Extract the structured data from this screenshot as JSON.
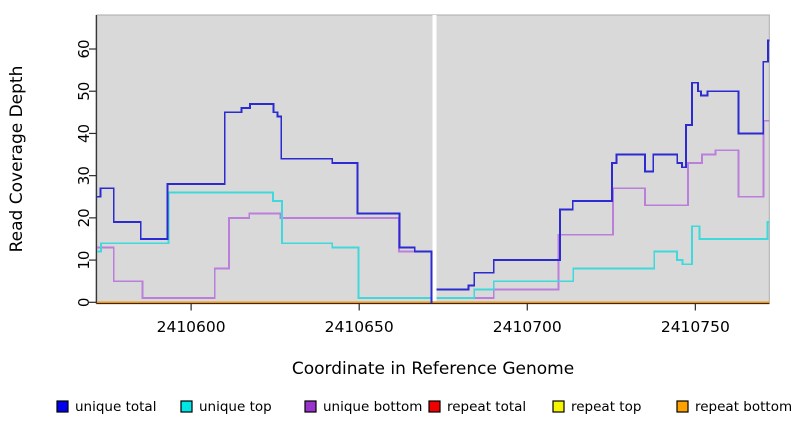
{
  "chart_data": {
    "type": "line",
    "subtype": "step",
    "title": "",
    "xlabel": "Coordinate in Reference Genome",
    "ylabel": "Read Coverage Depth",
    "xlim": [
      2410572,
      2410772
    ],
    "ylim": [
      0,
      68
    ],
    "x_ticks": [
      2410600,
      2410650,
      2410700,
      2410750
    ],
    "y_ticks": [
      0,
      10,
      20,
      30,
      40,
      50,
      60
    ],
    "grid": false,
    "legend_position": "bottom",
    "panel_bg": "#d9d9d9",
    "gap_x": [
      2410671.8,
      2410673.0
    ],
    "series": [
      {
        "name": "unique total",
        "color": "#0000EB",
        "line_color": "#2B2BD1",
        "segments": [
          {
            "points": [
              [
                2410572,
                25
              ],
              [
                2410573,
                27
              ],
              [
                2410577,
                19
              ],
              [
                2410585,
                15
              ],
              [
                2410593,
                28
              ],
              [
                2410610,
                45
              ],
              [
                2410615,
                46
              ],
              [
                2410617.5,
                47
              ],
              [
                2410624.5,
                45
              ],
              [
                2410625.7,
                44
              ],
              [
                2410626.8,
                34
              ],
              [
                2410642,
                33
              ],
              [
                2410649.5,
                21
              ],
              [
                2410662,
                13
              ],
              [
                2410666.5,
                12
              ],
              [
                2410671.5,
                0
              ]
            ],
            "end": 2410671.8
          },
          {
            "points": [
              [
                2410673,
                3
              ],
              [
                2410682.5,
                4
              ],
              [
                2410684.2,
                7
              ],
              [
                2410690,
                10
              ],
              [
                2410709.7,
                22
              ],
              [
                2410713.5,
                24
              ],
              [
                2410725.2,
                33
              ],
              [
                2410726.5,
                35
              ],
              [
                2410735,
                31
              ],
              [
                2410737.5,
                35
              ],
              [
                2410744.6,
                33
              ],
              [
                2410746,
                32
              ],
              [
                2410747.2,
                42
              ],
              [
                2410749,
                52
              ],
              [
                2410750.8,
                50
              ],
              [
                2410751.7,
                49
              ],
              [
                2410753.6,
                50
              ],
              [
                2410762.8,
                40
              ],
              [
                2410770.2,
                57
              ],
              [
                2410771.6,
                62
              ]
            ],
            "end": 2410772
          }
        ]
      },
      {
        "name": "unique top",
        "color": "#00E5E5",
        "line_color": "#3FD9DC",
        "segments": [
          {
            "points": [
              [
                2410572,
                12
              ],
              [
                2410573.2,
                14
              ],
              [
                2410593.3,
                26
              ],
              [
                2410624.4,
                24
              ],
              [
                2410627,
                14
              ],
              [
                2410642,
                13
              ],
              [
                2410649.8,
                1
              ]
            ],
            "end": 2410671.8
          },
          {
            "points": [
              [
                2410673,
                1
              ],
              [
                2410684.2,
                3
              ],
              [
                2410690,
                5
              ],
              [
                2410713.7,
                8
              ],
              [
                2410737.8,
                12
              ],
              [
                2410744.5,
                10
              ],
              [
                2410746.2,
                9
              ],
              [
                2410749,
                18
              ],
              [
                2410751.2,
                15
              ],
              [
                2410771.5,
                19
              ]
            ],
            "end": 2410772
          }
        ]
      },
      {
        "name": "unique bottom",
        "color": "#9A33CC",
        "line_color": "#BB7EDC",
        "segments": [
          {
            "points": [
              [
                2410572,
                13
              ],
              [
                2410577,
                5
              ],
              [
                2410585.5,
                1
              ],
              [
                2410607,
                8
              ],
              [
                2410611.3,
                20
              ],
              [
                2410617.3,
                21
              ],
              [
                2410626.5,
                20
              ],
              [
                2410661.8,
                12
              ]
            ],
            "end": 2410671.8
          },
          {
            "points": [
              [
                2410673,
                1
              ],
              [
                2410690,
                3
              ],
              [
                2410709.3,
                16
              ],
              [
                2410725.5,
                27
              ],
              [
                2410735,
                23
              ],
              [
                2410747.8,
                33
              ],
              [
                2410752,
                35
              ],
              [
                2410756,
                36
              ],
              [
                2410762.8,
                25
              ],
              [
                2410770.3,
                43
              ]
            ],
            "end": 2410772
          }
        ]
      },
      {
        "name": "repeat total",
        "color": "#F00000",
        "line_color": "#E60000",
        "segments": [
          {
            "points": [
              [
                2410572,
                0
              ]
            ],
            "end": 2410772
          }
        ]
      },
      {
        "name": "repeat top",
        "color": "#F5F500",
        "line_color": "#F0F000",
        "segments": [
          {
            "points": [
              [
                2410572,
                0
              ]
            ],
            "end": 2410772
          }
        ]
      },
      {
        "name": "repeat bottom",
        "color": "#FFA200",
        "line_color": "#FC9200",
        "segments": [
          {
            "points": [
              [
                2410572,
                0
              ]
            ],
            "end": 2410772
          }
        ]
      }
    ]
  }
}
